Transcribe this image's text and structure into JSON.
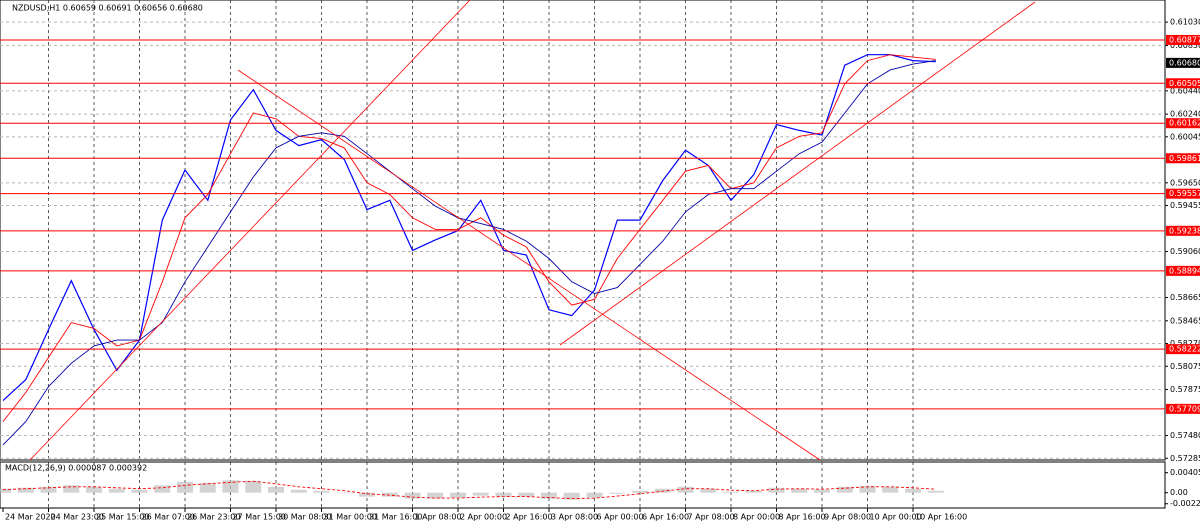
{
  "chart_data": [
    {
      "type": "line",
      "title": "NZDUSD,H1  0.60659 0.60691 0.60656 0.60680",
      "categories": [
        "24 Mar 2020",
        null,
        "24 Mar 23:00",
        null,
        "25 Mar 15:00",
        null,
        "26 Mar 07:00",
        null,
        "26 Mar 23:00",
        null,
        "27 Mar 15:00",
        null,
        "30 Mar 08:00",
        null,
        "31 Mar 00:00",
        null,
        "31 Mar 16:00",
        null,
        "1 Apr 08:00",
        null,
        "2 Apr 00:00",
        null,
        "2 Apr 16:00",
        null,
        "3 Apr 08:00",
        null,
        "6 Apr 00:00",
        null,
        "6 Apr 16:00",
        null,
        "7 Apr 08:00",
        null,
        "8 Apr 00:00",
        null,
        "8 Apr 16:00",
        null,
        "9 Apr 08:00",
        null,
        "10 Apr 00:00",
        null,
        "10 Apr 16:00",
        null
      ],
      "series": [
        {
          "color": "#0000ff",
          "values": [
            0.5778,
            0.5796,
            0.5839,
            0.5881,
            0.5839,
            0.5804,
            0.583,
            0.5933,
            0.5976,
            0.595,
            0.6019,
            0.6045,
            0.601,
            0.5997,
            0.6002,
            0.5985,
            0.5942,
            0.595,
            0.5907,
            0.5916,
            0.5924,
            0.595,
            0.5907,
            0.5903,
            0.5856,
            0.5851,
            0.5873,
            0.5933,
            0.5933,
            0.5967,
            0.5993,
            0.598,
            0.595,
            0.5972,
            0.6015,
            0.601,
            0.6006,
            0.6066,
            0.6075,
            0.6075,
            0.607,
            0.6069
          ]
        },
        {
          "color": "#ff0000",
          "values": [
            0.576,
            0.5785,
            0.5815,
            0.5845,
            0.584,
            0.5825,
            0.583,
            0.588,
            0.5935,
            0.5955,
            0.599,
            0.6025,
            0.602,
            0.6005,
            0.6003,
            0.5995,
            0.5965,
            0.5955,
            0.5935,
            0.5925,
            0.5925,
            0.5935,
            0.592,
            0.591,
            0.588,
            0.586,
            0.5865,
            0.59,
            0.5925,
            0.595,
            0.5975,
            0.598,
            0.596,
            0.5965,
            0.5995,
            0.6005,
            0.6008,
            0.605,
            0.607,
            0.6075,
            0.6073,
            0.6071
          ]
        },
        {
          "color": "#0000aa",
          "values": [
            0.574,
            0.576,
            0.579,
            0.581,
            0.5825,
            0.583,
            0.583,
            0.5845,
            0.588,
            0.591,
            0.594,
            0.597,
            0.5995,
            0.6005,
            0.6008,
            0.6005,
            0.599,
            0.5975,
            0.596,
            0.5945,
            0.5935,
            0.593,
            0.5925,
            0.5915,
            0.59,
            0.588,
            0.587,
            0.5875,
            0.5895,
            0.5915,
            0.594,
            0.5955,
            0.596,
            0.596,
            0.5975,
            0.599,
            0.6,
            0.6025,
            0.605,
            0.6062,
            0.6067,
            0.607
          ]
        }
      ],
      "ylim": [
        0.5727,
        0.6122
      ],
      "yticks": [
        {
          "value": 0.6103,
          "label": "0.61030"
        },
        {
          "value": 0.6083,
          "label": "0.60830"
        },
        {
          "value": 0.6044,
          "label": "0.60440"
        },
        {
          "value": 0.6024,
          "label": "0.60240"
        },
        0.60045,
        {
          "value": 0.5965,
          "label": "0.59650"
        },
        0.59455,
        {
          "value": 0.5906,
          "label": "0.59060"
        },
        0.58665,
        0.58465,
        {
          "value": 0.5827,
          "label": "0.58270"
        },
        0.58075,
        0.57875,
        {
          "value": 0.5748,
          "label": "0.57480"
        },
        0.57285
      ],
      "levels": [
        0.60877,
        {
          "value": 0.60505,
          "label": "0.60505"
        },
        0.60162,
        0.59861,
        0.59557,
        0.59238,
        0.58894,
        0.58222,
        0.57709
      ],
      "level_color": "#ff0000",
      "last_price": {
        "value": 0.6068,
        "label": "0.60680"
      },
      "grid": true
    },
    {
      "type": "macd",
      "title": "MACD(12,26,9) 0.000087 0.000392",
      "histogram": {
        "color": "#c0c0c0",
        "values": [
          0.0008,
          0.001,
          0.0012,
          0.0015,
          0.0012,
          0.0008,
          0.0006,
          0.0015,
          0.0022,
          0.002,
          0.0025,
          0.0024,
          0.0012,
          0.0006,
          0.0004,
          0,
          -0.0008,
          -0.0008,
          -0.0012,
          -0.0012,
          -0.001,
          -0.0006,
          -0.0008,
          -0.0008,
          -0.0012,
          -0.0014,
          -0.001,
          -0.0002,
          0.0004,
          0.0008,
          0.0012,
          0.0008,
          0.0002,
          0.0004,
          0.001,
          0.0008,
          0.0006,
          0.0012,
          0.0014,
          0.0012,
          0.0008,
          0.0004
        ]
      },
      "signal": {
        "color": "#ff0000",
        "values": [
          0.0006,
          0.0008,
          0.001,
          0.0012,
          0.0012,
          0.001,
          0.0008,
          0.001,
          0.0015,
          0.0018,
          0.0021,
          0.0023,
          0.0018,
          0.0012,
          0.0008,
          0.0004,
          -0.0002,
          -0.0005,
          -0.0009,
          -0.0011,
          -0.0011,
          -0.0009,
          -0.0008,
          -0.0008,
          -0.001,
          -0.0012,
          -0.0011,
          -0.0007,
          -0.0002,
          0.0003,
          0.0008,
          0.0008,
          0.0005,
          0.0004,
          0.0007,
          0.0008,
          0.0007,
          0.0009,
          0.0012,
          0.0012,
          0.001,
          0.0007
        ]
      },
      "ylim": [
        -0.0027,
        0.0046
      ],
      "yticks": [
        0.004058,
        {
          "value": 0,
          "label": "0.00"
        },
        -0.00224
      ]
    }
  ]
}
